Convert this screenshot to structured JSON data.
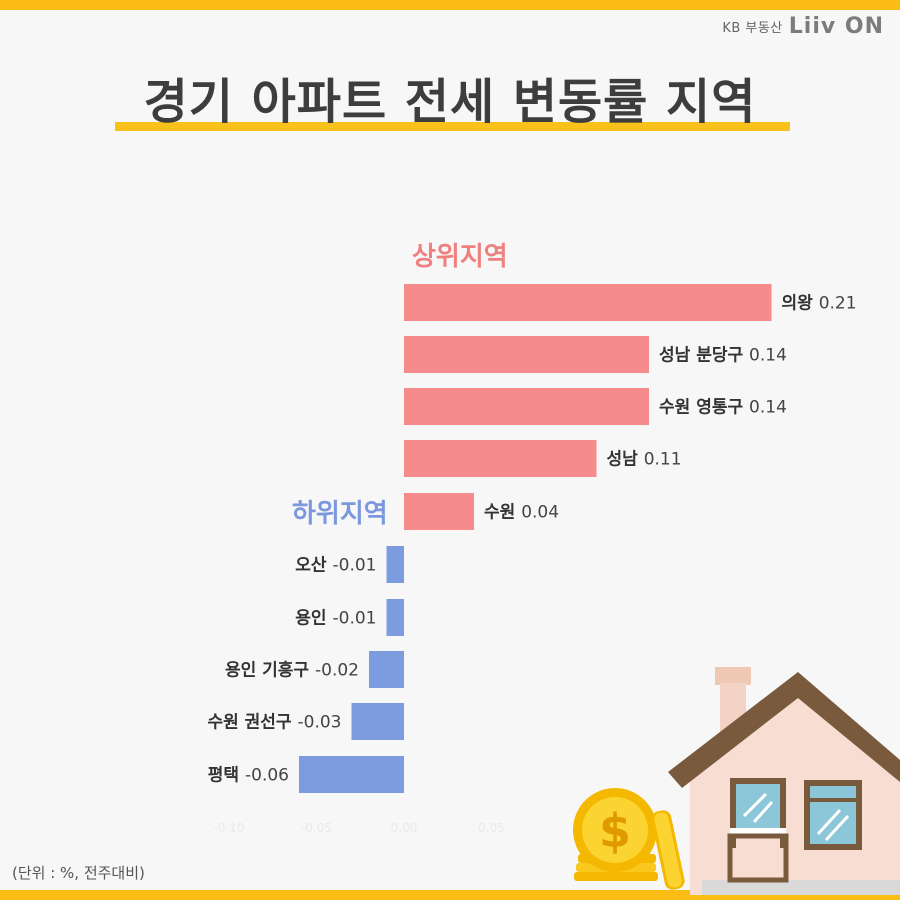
{
  "brand": {
    "kb_label": "KB 부동산",
    "logo_text": "Liiv ON"
  },
  "title": "경기 아파트 전세 변동률 지역",
  "footnote": "(단위 : %, 전주대비)",
  "chart_data": {
    "type": "bar",
    "orientation": "horizontal",
    "groups": [
      "상위지역",
      "하위지역"
    ],
    "categories": [
      "의왕",
      "성남 분당구",
      "수원 영통구",
      "성남",
      "수원",
      "오산",
      "용인",
      "용인 기흥구",
      "수원 권선구",
      "평택"
    ],
    "values": [
      0.21,
      0.14,
      0.14,
      0.11,
      0.04,
      -0.01,
      -0.01,
      -0.02,
      -0.03,
      -0.06
    ],
    "value_labels": [
      "0.21",
      "0.14",
      "0.14",
      "0.11",
      "0.04",
      "-0.01",
      "-0.01",
      "-0.02",
      "-0.03",
      "-0.06"
    ],
    "xlim": [
      -0.1,
      0.2
    ],
    "xticks": [
      "-0.10",
      "-0.05",
      "0.00",
      "0.05"
    ],
    "colors": {
      "positive": "#f58b8b",
      "negative": "#7d9ce0"
    }
  }
}
